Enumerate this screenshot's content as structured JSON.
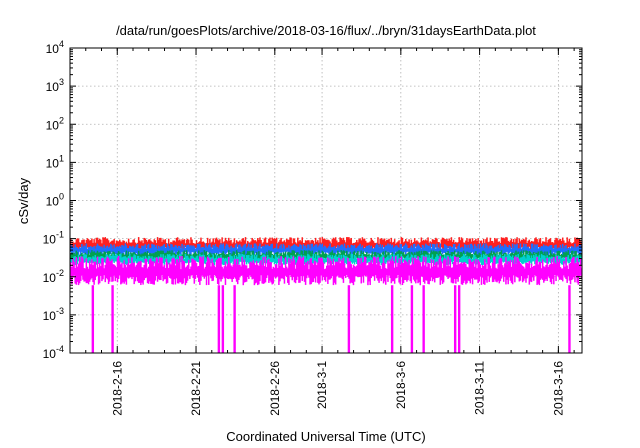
{
  "chart_data": {
    "type": "line",
    "title": "/data/run/goesPlots/archive/2018-03-16/flux/../bryn/31daysEarthData.plot",
    "xlabel": "Coordinated Universal Time (UTC)",
    "ylabel": "cSv/day",
    "yscale": "log",
    "ylim": [
      0.0001,
      10000
    ],
    "xlim": [
      "2018-02-13",
      "2018-03-17"
    ],
    "grid": true,
    "legend": "none",
    "y_ticks": [
      {
        "mant": "10",
        "exp": "-4"
      },
      {
        "mant": "10",
        "exp": "-3"
      },
      {
        "mant": "10",
        "exp": "-2"
      },
      {
        "mant": "10",
        "exp": "-1"
      },
      {
        "mant": "10",
        "exp": "0"
      },
      {
        "mant": "10",
        "exp": "1"
      },
      {
        "mant": "10",
        "exp": "2"
      },
      {
        "mant": "10",
        "exp": "3"
      },
      {
        "mant": "10",
        "exp": "4"
      }
    ],
    "x_ticks": [
      "2018-2-16",
      "2018-2-21",
      "2018-2-26",
      "2018-3-1",
      "2018-3-6",
      "2018-3-11",
      "2018-3-16"
    ],
    "x_tick_dates": [
      "2018-02-16",
      "2018-02-21",
      "2018-02-26",
      "2018-03-01",
      "2018-03-06",
      "2018-03-11",
      "2018-03-16"
    ],
    "series": [
      {
        "color": "#ff2020",
        "band": [
          0.045,
          0.11
        ]
      },
      {
        "color": "#1f6fff",
        "band": [
          0.035,
          0.075
        ]
      },
      {
        "color": "#00a050",
        "band": [
          0.025,
          0.05
        ]
      },
      {
        "color": "#00d0d0",
        "band": [
          0.02,
          0.04
        ]
      },
      {
        "color": "#ff00ff",
        "band": [
          0.006,
          0.035
        ]
      }
    ],
    "dropouts": [
      "2018-02-14",
      "2018-02-15",
      "2018-02-22",
      "2018-02-22",
      "2018-02-23",
      "2018-03-02",
      "2018-03-05",
      "2018-03-06",
      "2018-03-07",
      "2018-03-09",
      "2018-03-09",
      "2018-03-16"
    ],
    "dropout_min": 0.0001
  }
}
